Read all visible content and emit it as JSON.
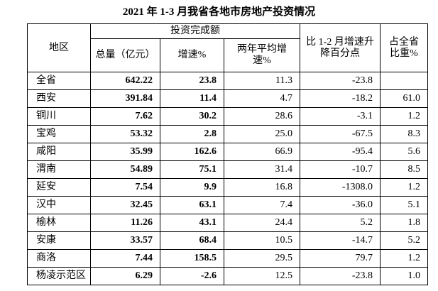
{
  "title": "2021 年 1-3 月我省各地市房地产投资情况",
  "table": {
    "headers": {
      "region": "地区",
      "investment": "投资完成额",
      "total": "总量（亿元）",
      "growth": "增速%",
      "two_year": "两年平均增速%",
      "change": "比 1-2 月增速升降百分点",
      "share": "占全省比重%"
    },
    "rows": [
      [
        "全省",
        "642.22",
        "23.8",
        "11.3",
        "-23.8",
        null
      ],
      [
        "西安",
        "391.84",
        "11.4",
        "4.7",
        "-18.2",
        "61.0"
      ],
      [
        "铜川",
        "7.62",
        "30.2",
        "28.6",
        "-3.1",
        "1.2"
      ],
      [
        "宝鸡",
        "53.32",
        "2.8",
        "25.0",
        "-67.5",
        "8.3"
      ],
      [
        "咸阳",
        "35.99",
        "162.6",
        "66.9",
        "-95.4",
        "5.6"
      ],
      [
        "渭南",
        "54.89",
        "75.1",
        "31.4",
        "-10.7",
        "8.5"
      ],
      [
        "延安",
        "7.54",
        "9.9",
        "16.8",
        "-1308.0",
        "1.2"
      ],
      [
        "汉中",
        "32.45",
        "63.1",
        "7.4",
        "-36.0",
        "5.1"
      ],
      [
        "榆林",
        "11.26",
        "43.1",
        "24.4",
        "5.2",
        "1.8"
      ],
      [
        "安康",
        "33.57",
        "68.4",
        "10.5",
        "-14.7",
        "5.2"
      ],
      [
        "商洛",
        "7.44",
        "158.5",
        "29.5",
        "79.7",
        "1.2"
      ],
      [
        "杨凌示范区",
        "6.29",
        "-2.6",
        "12.5",
        "-23.8",
        "1.0"
      ]
    ]
  }
}
